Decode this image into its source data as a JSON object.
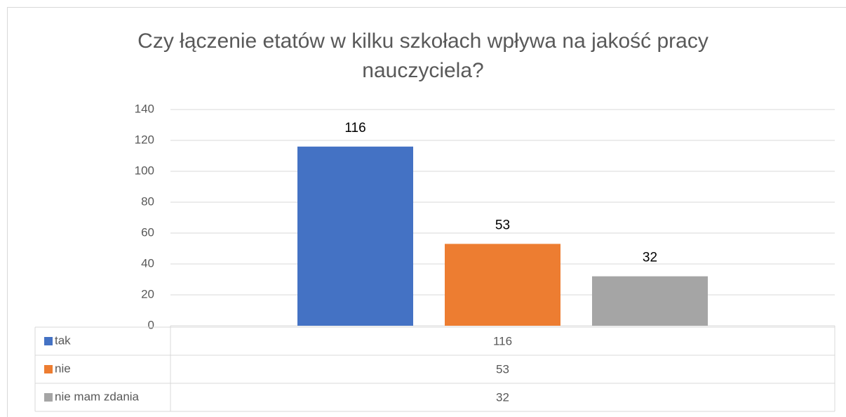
{
  "chart_data": {
    "type": "bar",
    "title": "Czy łączenie etatów w kilku szkołach wpływa na jakość pracy nauczyciela?",
    "categories": [
      null
    ],
    "series": [
      {
        "name": "tak",
        "color": "#4472c4",
        "values": [
          116
        ]
      },
      {
        "name": "nie",
        "color": "#ed7d31",
        "values": [
          53
        ]
      },
      {
        "name": "nie mam zdania",
        "color": "#a5a5a5",
        "values": [
          32
        ]
      }
    ],
    "ylim": [
      0,
      140
    ],
    "yticks": [
      0,
      20,
      40,
      60,
      80,
      100,
      120,
      140
    ],
    "grid": true,
    "data_table": true
  }
}
